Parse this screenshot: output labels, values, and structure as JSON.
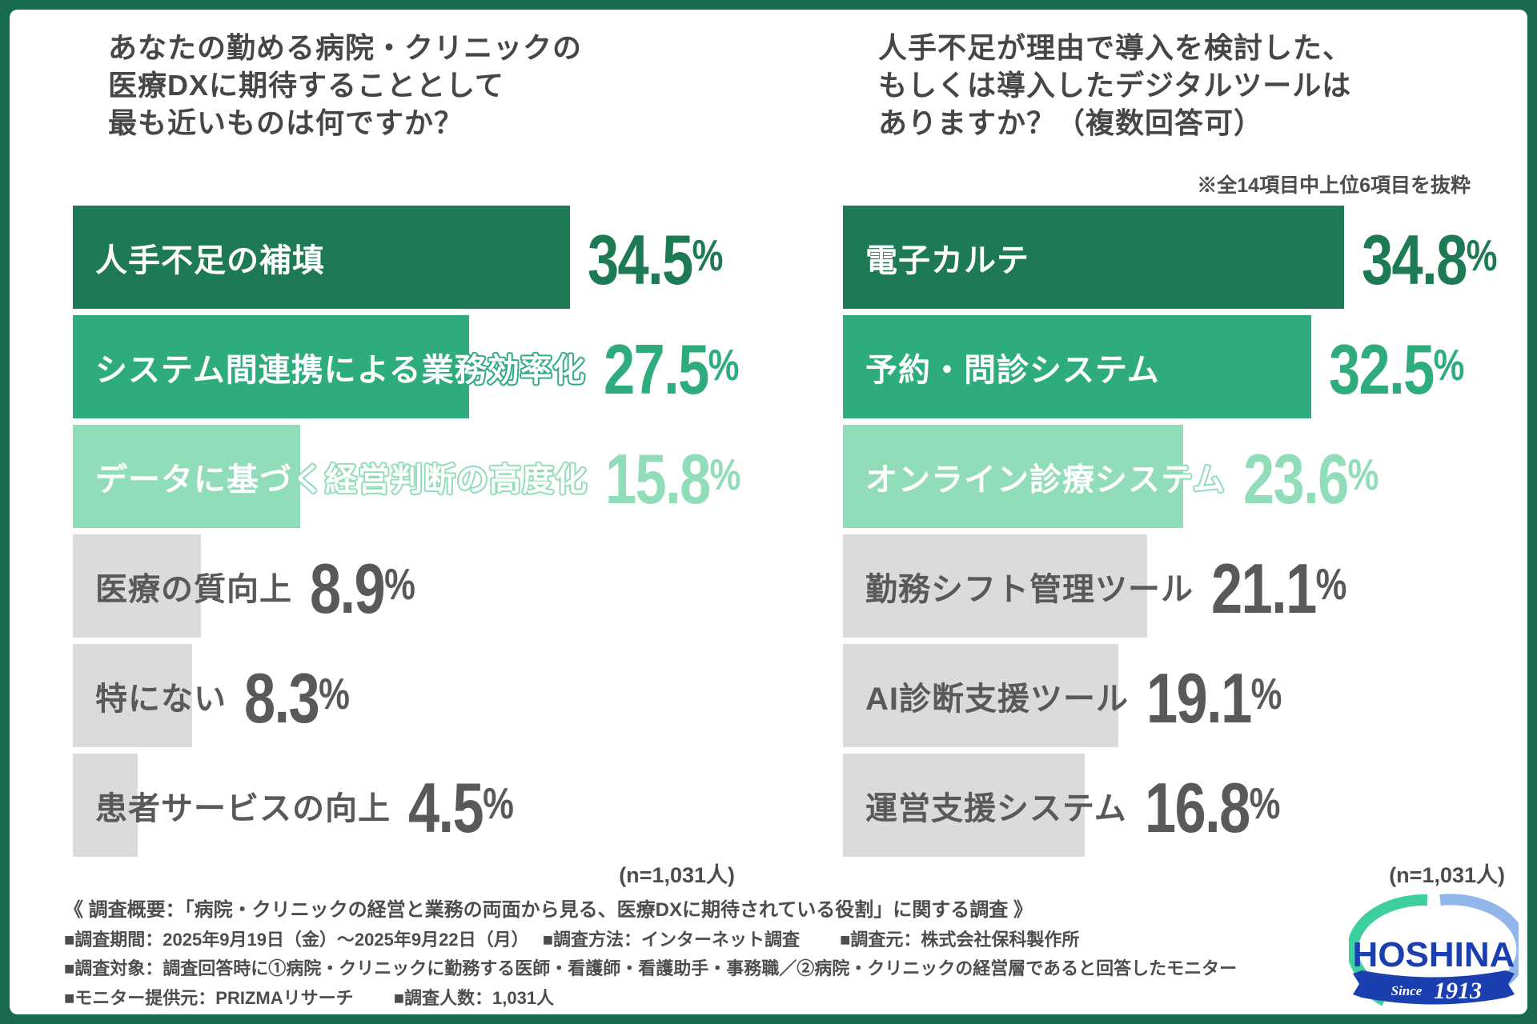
{
  "page": {
    "frame_color": "#186B4D",
    "background_color": "#ffffff"
  },
  "chart_data": [
    {
      "type": "bar",
      "orientation": "horizontal",
      "title_lines": [
        "あなたの勤める病院・クリニックの",
        "医療DXに期待することとして",
        "最も近いものは何ですか？"
      ],
      "n_label": "(n=1,031人)",
      "categories": [
        "人手不足の補填",
        "システム間連携による業務効率化",
        "データに基づく経営判断の高度化",
        "医療の質向上",
        "特にない",
        "患者サービスの向上"
      ],
      "values": [
        34.5,
        27.5,
        15.8,
        8.9,
        8.3,
        4.5
      ],
      "value_labels": [
        "34.5%",
        "27.5%",
        "15.8%",
        "8.9%",
        "8.3%",
        "4.5%"
      ],
      "bar_colors": [
        "#1D7A55",
        "#2FAC7D",
        "#92DDB9",
        "#DBDBDB",
        "#DBDBDB",
        "#DBDBDB"
      ],
      "label_on_bar": [
        true,
        true,
        true,
        false,
        false,
        false
      ],
      "xlim": [
        0,
        40
      ],
      "unit": "%"
    },
    {
      "type": "bar",
      "orientation": "horizontal",
      "title_lines": [
        "人手不足が理由で導入を検討した、",
        "もしくは導入したデジタルツールは",
        "ありますか？（複数回答可）"
      ],
      "note": "※全14項目中上位6項目を抜粋",
      "n_label": "(n=1,031人)",
      "categories": [
        "電子カルテ",
        "予約・問診システム",
        "オンライン診療システム",
        "勤務シフト管理ツール",
        "AI診断支援ツール",
        "運営支援システム"
      ],
      "values": [
        34.8,
        32.5,
        23.6,
        21.1,
        19.1,
        16.8
      ],
      "value_labels": [
        "34.8%",
        "32.5%",
        "23.6%",
        "21.1%",
        "19.1%",
        "16.8%"
      ],
      "bar_colors": [
        "#1D7A55",
        "#2FAC7D",
        "#92DDB9",
        "#DBDBDB",
        "#DBDBDB",
        "#DBDBDB"
      ],
      "label_on_bar": [
        true,
        true,
        true,
        false,
        false,
        false
      ],
      "xlim": [
        0,
        40
      ],
      "unit": "%"
    }
  ],
  "footer": {
    "lines": [
      "《 調査概要：「病院・クリニックの経営と業務の両面から見る、医療DXに期待されている役割」に関する調査 》",
      "■調査期間：2025年9月19日（金）〜2025年9月22日（月）　 ■調査方法：インターネット調査　　 ■調査元：株式会社保科製作所",
      "■調査対象：調査回答時に①病院・クリニックに勤務する医師・看護師・看護助手・事務職／②病院・クリニックの経営層であると回答したモニター",
      "■モニター提供元：PRIZMAリサーチ　　 ■調査人数：1,031人"
    ]
  },
  "logo": {
    "wordmark": "HOSHINA",
    "since_prefix": "Since",
    "since_year": "1913",
    "wordmark_color": "#1C3FB0",
    "swoosh_teal": "#3ECFA0",
    "swoosh_blue": "#91B6EA"
  },
  "style": {
    "text_dark": "#464646",
    "text_gray": "#595959",
    "bar_gray": "#DBDBDB"
  }
}
